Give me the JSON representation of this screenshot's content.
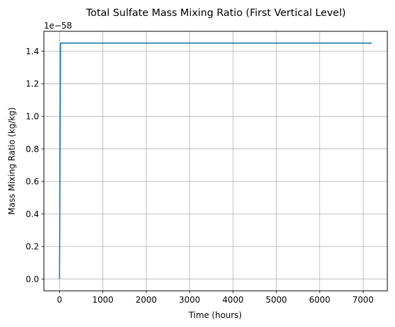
{
  "chart_data": {
    "type": "line",
    "title": "Total Sulfate Mass Mixing Ratio (First Vertical Level)",
    "xlabel": "Time (hours)",
    "ylabel": "Mass Mixing Ratio (kg/kg)",
    "y_offset_label": "1e−58",
    "xlim": [
      -360,
      7560
    ],
    "ylim": [
      -0.0725,
      1.5225
    ],
    "x_ticks": [
      0,
      1000,
      2000,
      3000,
      4000,
      5000,
      6000,
      7000
    ],
    "y_ticks": [
      0.0,
      0.2,
      0.4,
      0.6,
      0.8,
      1.0,
      1.2,
      1.4
    ],
    "y_tick_labels": [
      "0.0",
      "0.2",
      "0.4",
      "0.6",
      "0.8",
      "1.0",
      "1.2",
      "1.4"
    ],
    "grid": true,
    "series": [
      {
        "color": "#1f77b4",
        "x": [
          0,
          24,
          7200
        ],
        "y": [
          0.0,
          1.45,
          1.45
        ]
      }
    ]
  }
}
